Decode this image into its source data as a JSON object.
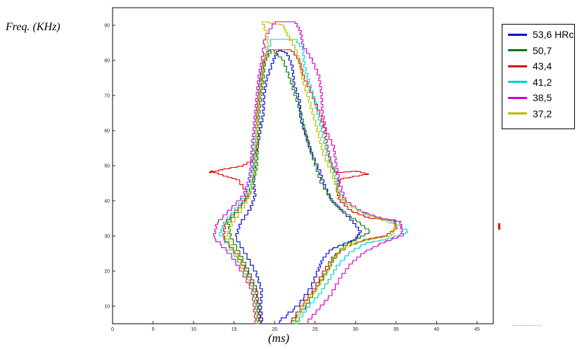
{
  "chart_data": {
    "type": "line",
    "xlabel": "(ms)",
    "ylabel": "Freq. (KHz)",
    "xlim": [
      0,
      47
    ],
    "ylim": [
      5,
      95
    ],
    "xticks": [
      0,
      5,
      10,
      15,
      20,
      25,
      30,
      35,
      40,
      45
    ],
    "yticks": [
      10,
      20,
      30,
      40,
      50,
      60,
      70,
      80,
      90
    ],
    "grid": false,
    "legend_position": "outside-right-top",
    "series": [
      {
        "name": "53,6 HRc",
        "color": "#0000cc",
        "points": [
          [
            18.5,
            5
          ],
          [
            18.3,
            10
          ],
          [
            18.4,
            15
          ],
          [
            17.7,
            20
          ],
          [
            16.5,
            25
          ],
          [
            15.2,
            30
          ],
          [
            15.8,
            34
          ],
          [
            17.0,
            38
          ],
          [
            17.6,
            42
          ],
          [
            17.4,
            46
          ],
          [
            17.5,
            50
          ],
          [
            17.8,
            55
          ],
          [
            18.2,
            60
          ],
          [
            18.6,
            65
          ],
          [
            18.7,
            70
          ],
          [
            19.0,
            75
          ],
          [
            19.8,
            80
          ],
          [
            20.4,
            83
          ],
          [
            21.5,
            82
          ],
          [
            22.2,
            78
          ],
          [
            22.4,
            73
          ],
          [
            23.1,
            68
          ],
          [
            23.2,
            63
          ],
          [
            23.9,
            58
          ],
          [
            24.6,
            53
          ],
          [
            25.6,
            48
          ],
          [
            26.2,
            44
          ],
          [
            27.0,
            40
          ],
          [
            28.3,
            37
          ],
          [
            29.6,
            34
          ],
          [
            30.6,
            31
          ],
          [
            30.0,
            29
          ],
          [
            29.0,
            28
          ],
          [
            27.0,
            26
          ],
          [
            25.9,
            23
          ],
          [
            25.4,
            20
          ],
          [
            24.5,
            15
          ],
          [
            23.0,
            10
          ],
          [
            20.5,
            5
          ]
        ]
      },
      {
        "name": "50,7",
        "color": "#007700",
        "points": [
          [
            18.2,
            5
          ],
          [
            18.0,
            10
          ],
          [
            17.8,
            15
          ],
          [
            16.9,
            20
          ],
          [
            15.8,
            25
          ],
          [
            14.6,
            30
          ],
          [
            14.3,
            34
          ],
          [
            15.6,
            38
          ],
          [
            16.8,
            42
          ],
          [
            17.4,
            46
          ],
          [
            17.8,
            50
          ],
          [
            17.9,
            55
          ],
          [
            18.0,
            60
          ],
          [
            18.1,
            65
          ],
          [
            18.3,
            70
          ],
          [
            18.6,
            75
          ],
          [
            18.8,
            80
          ],
          [
            19.6,
            83
          ],
          [
            21.0,
            80
          ],
          [
            21.8,
            75
          ],
          [
            22.5,
            70
          ],
          [
            23.2,
            65
          ],
          [
            23.7,
            60
          ],
          [
            24.3,
            55
          ],
          [
            25.0,
            50
          ],
          [
            25.7,
            45
          ],
          [
            27.0,
            40
          ],
          [
            28.3,
            37
          ],
          [
            30.2,
            34
          ],
          [
            31.8,
            31
          ],
          [
            30.2,
            29
          ],
          [
            28.6,
            27
          ],
          [
            27.3,
            23
          ],
          [
            26.6,
            20
          ],
          [
            25.2,
            15
          ],
          [
            24.0,
            10
          ],
          [
            22.2,
            5
          ]
        ]
      },
      {
        "name": "43,4",
        "color": "#dd0000",
        "points": [
          [
            18.1,
            5
          ],
          [
            17.9,
            10
          ],
          [
            17.7,
            15
          ],
          [
            16.6,
            20
          ],
          [
            15.4,
            25
          ],
          [
            13.7,
            30
          ],
          [
            13.9,
            34
          ],
          [
            15.4,
            38
          ],
          [
            16.8,
            42
          ],
          [
            15.6,
            46
          ],
          [
            14.1,
            47
          ],
          [
            12.3,
            48.5
          ],
          [
            12.0,
            48
          ],
          [
            13.5,
            49
          ],
          [
            16.0,
            50
          ],
          [
            17.4,
            52
          ],
          [
            17.7,
            55
          ],
          [
            17.8,
            60
          ],
          [
            17.9,
            65
          ],
          [
            18.1,
            70
          ],
          [
            18.3,
            75
          ],
          [
            18.7,
            80
          ],
          [
            19.2,
            83
          ],
          [
            22.0,
            83
          ],
          [
            23.0,
            80
          ],
          [
            23.6,
            75
          ],
          [
            24.6,
            70
          ],
          [
            25.5,
            65
          ],
          [
            26.2,
            60
          ],
          [
            26.5,
            55
          ],
          [
            27.0,
            50
          ],
          [
            27.5,
            48
          ],
          [
            30.0,
            48.5
          ],
          [
            31.5,
            47.5
          ],
          [
            28.0,
            46
          ],
          [
            27.7,
            43
          ],
          [
            28.0,
            40
          ],
          [
            29.4,
            37
          ],
          [
            31.6,
            35
          ],
          [
            34.8,
            34.5
          ],
          [
            35.0,
            32
          ],
          [
            33.8,
            30
          ],
          [
            31.5,
            29
          ],
          [
            29.2,
            27
          ],
          [
            27.3,
            24
          ],
          [
            26.2,
            20
          ],
          [
            25.0,
            15
          ],
          [
            23.5,
            10
          ],
          [
            22.0,
            5
          ]
        ]
      },
      {
        "name": "41,2",
        "color": "#00cccc",
        "points": [
          [
            17.9,
            5
          ],
          [
            17.7,
            10
          ],
          [
            17.5,
            15
          ],
          [
            16.3,
            20
          ],
          [
            15.1,
            25
          ],
          [
            13.3,
            31
          ],
          [
            13.8,
            34
          ],
          [
            15.2,
            38
          ],
          [
            16.5,
            42
          ],
          [
            17.1,
            46
          ],
          [
            17.4,
            50
          ],
          [
            17.5,
            55
          ],
          [
            17.6,
            60
          ],
          [
            17.8,
            65
          ],
          [
            18.0,
            70
          ],
          [
            18.3,
            75
          ],
          [
            18.6,
            80
          ],
          [
            19.6,
            86
          ],
          [
            22.5,
            86
          ],
          [
            23.5,
            83
          ],
          [
            23.7,
            78
          ],
          [
            24.3,
            73
          ],
          [
            25.0,
            68
          ],
          [
            25.5,
            63
          ],
          [
            26.0,
            58
          ],
          [
            26.5,
            53
          ],
          [
            27.4,
            48
          ],
          [
            27.8,
            43
          ],
          [
            28.8,
            39
          ],
          [
            31.3,
            36
          ],
          [
            34.5,
            34
          ],
          [
            36.5,
            31
          ],
          [
            34.0,
            29
          ],
          [
            31.5,
            28
          ],
          [
            29.3,
            25
          ],
          [
            27.7,
            21
          ],
          [
            26.7,
            17
          ],
          [
            25.5,
            13
          ],
          [
            24.0,
            9
          ],
          [
            22.8,
            5
          ]
        ]
      },
      {
        "name": "38,5",
        "color": "#cc00cc",
        "points": [
          [
            17.7,
            5
          ],
          [
            17.5,
            10
          ],
          [
            17.2,
            15
          ],
          [
            16.0,
            20
          ],
          [
            14.6,
            25
          ],
          [
            12.5,
            30
          ],
          [
            12.9,
            34
          ],
          [
            14.6,
            38
          ],
          [
            16.2,
            42
          ],
          [
            16.8,
            46
          ],
          [
            17.1,
            50
          ],
          [
            17.2,
            55
          ],
          [
            17.4,
            60
          ],
          [
            17.6,
            65
          ],
          [
            17.8,
            70
          ],
          [
            18.0,
            75
          ],
          [
            18.4,
            80
          ],
          [
            18.8,
            87
          ],
          [
            20.0,
            91
          ],
          [
            22.5,
            91
          ],
          [
            23.2,
            88
          ],
          [
            23.5,
            84
          ],
          [
            24.6,
            80
          ],
          [
            25.5,
            75
          ],
          [
            25.8,
            70
          ],
          [
            25.9,
            65
          ],
          [
            26.3,
            60
          ],
          [
            27.3,
            55
          ],
          [
            27.6,
            50
          ],
          [
            28.0,
            45
          ],
          [
            28.7,
            40
          ],
          [
            30.5,
            37
          ],
          [
            33.0,
            35
          ],
          [
            35.5,
            34
          ],
          [
            35.8,
            30
          ],
          [
            33.5,
            28
          ],
          [
            31.0,
            25
          ],
          [
            29.5,
            22
          ],
          [
            28.2,
            18
          ],
          [
            27.0,
            13
          ],
          [
            25.5,
            9
          ],
          [
            24.0,
            5
          ]
        ]
      },
      {
        "name": "37,2",
        "color": "#bbbb00",
        "points": [
          [
            17.8,
            5
          ],
          [
            17.6,
            10
          ],
          [
            17.3,
            15
          ],
          [
            16.2,
            20
          ],
          [
            15.3,
            25
          ],
          [
            14.0,
            30
          ],
          [
            14.8,
            34
          ],
          [
            16.0,
            38
          ],
          [
            17.0,
            42
          ],
          [
            17.3,
            46
          ],
          [
            17.6,
            50
          ],
          [
            17.7,
            55
          ],
          [
            17.8,
            60
          ],
          [
            17.9,
            65
          ],
          [
            18.1,
            70
          ],
          [
            18.4,
            75
          ],
          [
            18.7,
            80
          ],
          [
            19.2,
            86
          ],
          [
            18.6,
            91
          ],
          [
            21.0,
            90
          ],
          [
            21.6,
            87
          ],
          [
            22.6,
            83
          ],
          [
            23.2,
            78
          ],
          [
            23.6,
            73
          ],
          [
            24.3,
            68
          ],
          [
            24.9,
            63
          ],
          [
            25.5,
            58
          ],
          [
            26.0,
            53
          ],
          [
            27.0,
            48
          ],
          [
            27.7,
            43
          ],
          [
            28.4,
            40
          ],
          [
            30.3,
            37
          ],
          [
            32.5,
            35
          ],
          [
            35.0,
            33
          ],
          [
            34.5,
            30
          ],
          [
            32.0,
            29
          ],
          [
            30.0,
            28
          ],
          [
            28.3,
            26
          ],
          [
            27.0,
            22
          ],
          [
            26.2,
            18
          ],
          [
            25.0,
            14
          ],
          [
            23.5,
            10
          ],
          [
            22.7,
            5
          ]
        ]
      }
    ]
  }
}
